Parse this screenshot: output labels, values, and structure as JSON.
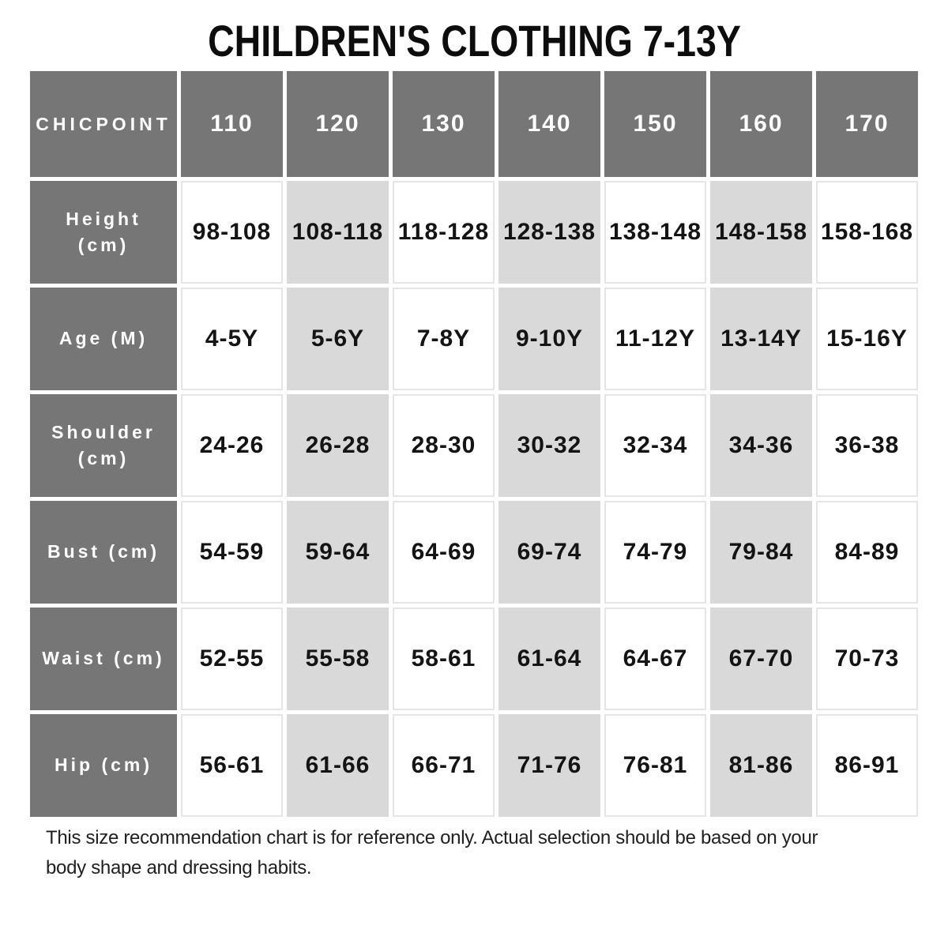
{
  "chart_data": {
    "type": "table",
    "title": "CHILDREN'S CLOTHING 7-13Y",
    "columns": [
      "CHICPOINT",
      "110",
      "120",
      "130",
      "140",
      "150",
      "160",
      "170"
    ],
    "rows": [
      [
        "Height (cm)",
        "98-108",
        "108-118",
        "118-128",
        "128-138",
        "138-148",
        "148-158",
        "158-168"
      ],
      [
        "Age (M)",
        "4-5Y",
        "5-6Y",
        "7-8Y",
        "9-10Y",
        "11-12Y",
        "13-14Y",
        "15-16Y"
      ],
      [
        "Shoulder (cm)",
        "24-26",
        "26-28",
        "28-30",
        "30-32",
        "32-34",
        "34-36",
        "36-38"
      ],
      [
        "Bust (cm)",
        "54-59",
        "59-64",
        "64-69",
        "69-74",
        "74-79",
        "79-84",
        "84-89"
      ],
      [
        "Waist (cm)",
        "52-55",
        "55-58",
        "58-61",
        "61-64",
        "64-67",
        "67-70",
        "70-73"
      ],
      [
        "Hip (cm)",
        "56-61",
        "61-66",
        "66-71",
        "71-76",
        "76-81",
        "81-86",
        "86-91"
      ]
    ],
    "shaded_columns": [
      "120",
      "140",
      "160"
    ],
    "layout": {
      "header_row": "dark",
      "label_column": "dark",
      "grid": "off",
      "legend": "none"
    }
  },
  "footer": {
    "lines": [
      "This size recommendation chart is for reference only. Actual selection should be based on your",
      "body shape and dressing habits."
    ]
  },
  "colors": {
    "header_bg": "#767676",
    "header_text": "#ffffff",
    "shaded_cell_bg": "#d9d9d9",
    "cell_bg": "#ffffff",
    "cell_border": "#e5e5e5",
    "body_text": "#141414"
  }
}
